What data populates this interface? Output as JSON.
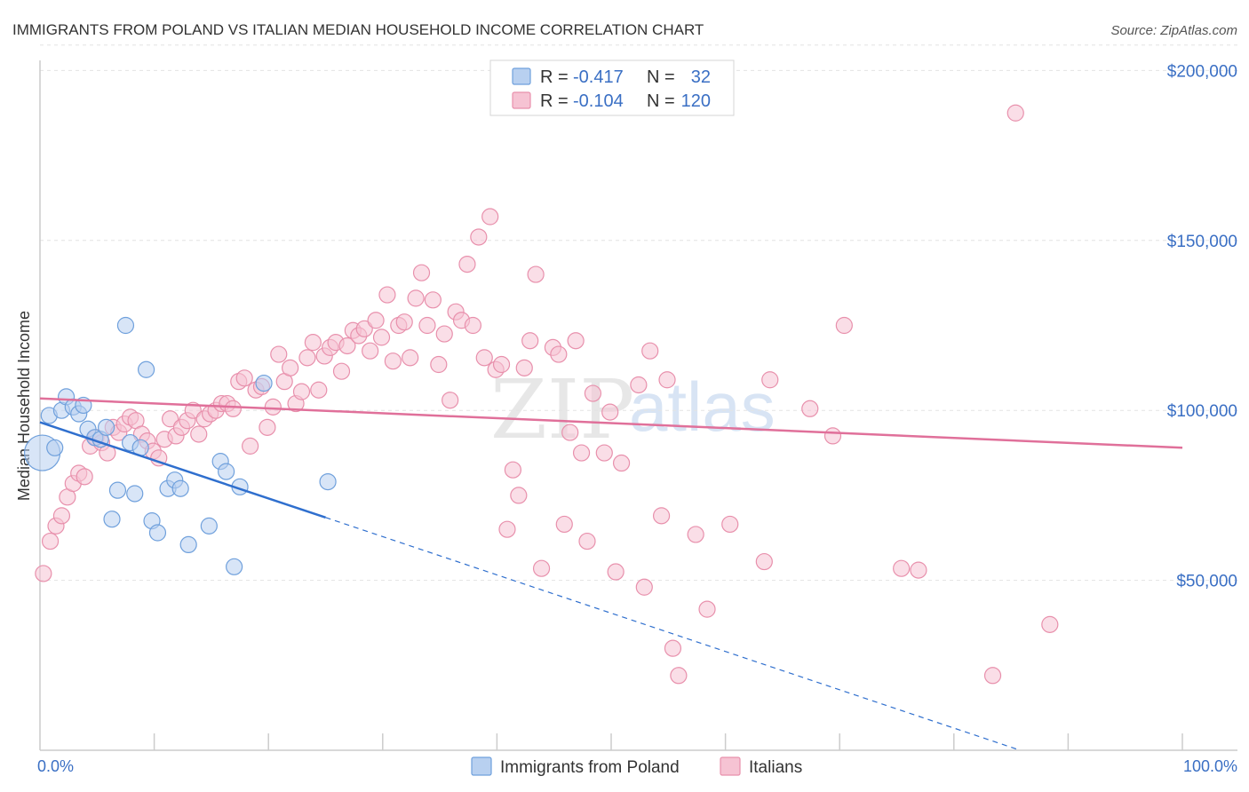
{
  "chart_data": {
    "type": "scatter",
    "title": "IMMIGRANTS FROM POLAND VS ITALIAN MEDIAN HOUSEHOLD INCOME CORRELATION CHART",
    "source": "Source: ZipAtlas.com",
    "xlabel": "",
    "ylabel": "Median Household Income",
    "xlim": [
      0,
      100
    ],
    "ylim": [
      0,
      210000
    ],
    "x_tick_labels": {
      "min": "0.0%",
      "max": "100.0%"
    },
    "y_ticks": [
      {
        "value": 50000,
        "label": "$50,000"
      },
      {
        "value": 100000,
        "label": "$100,000"
      },
      {
        "value": 150000,
        "label": "$150,000"
      },
      {
        "value": 200000,
        "label": "$200,000"
      }
    ],
    "watermark": {
      "part1": "ZIP",
      "part2": "atlas"
    },
    "legend": {
      "r_label": "R =",
      "n_label": "N =",
      "entries": [
        {
          "r": "-0.417",
          "n": "32"
        },
        {
          "r": "-0.104",
          "n": "120"
        }
      ]
    },
    "series": [
      {
        "name": "Immigrants from Poland",
        "color": "#6fa0dc",
        "fill": "#b8d0f0",
        "line_color": "#2f6fce",
        "trend": {
          "x_start": 0,
          "y_start": 96500,
          "x_solid_end": 25,
          "y_solid_end": 68500,
          "x_dash_end": 100,
          "y_dash_end": -16000
        },
        "points": [
          [
            0.2,
            87500,
            20
          ],
          [
            0.8,
            98500,
            9
          ],
          [
            1.3,
            89000,
            9
          ],
          [
            1.9,
            100000,
            9
          ],
          [
            2.3,
            104000,
            9
          ],
          [
            2.9,
            101000,
            9
          ],
          [
            3.4,
            99000,
            9
          ],
          [
            3.8,
            101500,
            9
          ],
          [
            4.2,
            94500,
            9
          ],
          [
            4.8,
            92000,
            9
          ],
          [
            5.3,
            91500,
            9
          ],
          [
            5.8,
            95000,
            9
          ],
          [
            6.3,
            68000,
            9
          ],
          [
            6.8,
            76500,
            9
          ],
          [
            7.5,
            125000,
            9
          ],
          [
            7.9,
            90500,
            9
          ],
          [
            8.3,
            75500,
            9
          ],
          [
            8.8,
            89000,
            9
          ],
          [
            9.3,
            112000,
            9
          ],
          [
            9.8,
            67500,
            9
          ],
          [
            10.3,
            64000,
            9
          ],
          [
            11.2,
            77000,
            9
          ],
          [
            11.8,
            79500,
            9
          ],
          [
            12.3,
            77000,
            9
          ],
          [
            13.0,
            60500,
            9
          ],
          [
            14.8,
            66000,
            9
          ],
          [
            15.8,
            85000,
            9
          ],
          [
            16.3,
            82000,
            9
          ],
          [
            17.0,
            54000,
            9
          ],
          [
            17.5,
            77500,
            9
          ],
          [
            19.6,
            108000,
            9
          ],
          [
            25.2,
            79000,
            9
          ]
        ]
      },
      {
        "name": "Italians",
        "color": "#e890ac",
        "fill": "#f6c3d3",
        "line_color": "#e0709a",
        "trend": {
          "x_start": 0,
          "y_start": 103500,
          "x_end": 100,
          "y_end": 89000
        },
        "points": [
          [
            0.3,
            52000,
            9
          ],
          [
            0.9,
            61500,
            9
          ],
          [
            1.4,
            66000,
            9
          ],
          [
            1.9,
            69000,
            9
          ],
          [
            2.4,
            74500,
            9
          ],
          [
            2.9,
            78500,
            9
          ],
          [
            3.4,
            81500,
            9
          ],
          [
            3.9,
            80500,
            9
          ],
          [
            4.4,
            89500,
            9
          ],
          [
            4.9,
            92000,
            9
          ],
          [
            5.4,
            90500,
            9
          ],
          [
            5.9,
            87500,
            9
          ],
          [
            6.4,
            95000,
            9
          ],
          [
            6.9,
            93500,
            9
          ],
          [
            7.4,
            96000,
            9
          ],
          [
            7.9,
            98000,
            9
          ],
          [
            8.4,
            97000,
            9
          ],
          [
            8.9,
            93000,
            9
          ],
          [
            9.4,
            91000,
            9
          ],
          [
            9.9,
            88000,
            9
          ],
          [
            10.4,
            86000,
            9
          ],
          [
            10.9,
            91500,
            9
          ],
          [
            11.4,
            97500,
            9
          ],
          [
            11.9,
            92500,
            9
          ],
          [
            12.4,
            95000,
            9
          ],
          [
            12.9,
            97000,
            9
          ],
          [
            13.4,
            100000,
            9
          ],
          [
            13.9,
            93000,
            9
          ],
          [
            14.4,
            97500,
            9
          ],
          [
            14.9,
            99000,
            9
          ],
          [
            15.4,
            100000,
            9
          ],
          [
            15.9,
            102000,
            9
          ],
          [
            16.4,
            102000,
            9
          ],
          [
            16.9,
            100500,
            9
          ],
          [
            17.4,
            108500,
            9
          ],
          [
            17.9,
            109500,
            9
          ],
          [
            18.4,
            89500,
            9
          ],
          [
            18.9,
            106000,
            9
          ],
          [
            19.4,
            107000,
            9
          ],
          [
            19.9,
            95000,
            9
          ],
          [
            20.4,
            101000,
            9
          ],
          [
            20.9,
            116500,
            9
          ],
          [
            21.4,
            108500,
            9
          ],
          [
            21.9,
            112500,
            9
          ],
          [
            22.4,
            102000,
            9
          ],
          [
            22.9,
            105500,
            9
          ],
          [
            23.4,
            115500,
            9
          ],
          [
            23.9,
            120000,
            9
          ],
          [
            24.4,
            106000,
            9
          ],
          [
            24.9,
            116000,
            9
          ],
          [
            25.4,
            118500,
            9
          ],
          [
            25.9,
            120000,
            9
          ],
          [
            26.4,
            111500,
            9
          ],
          [
            26.9,
            119000,
            9
          ],
          [
            27.4,
            123500,
            9
          ],
          [
            27.9,
            122000,
            9
          ],
          [
            28.4,
            124000,
            9
          ],
          [
            28.9,
            117500,
            9
          ],
          [
            29.4,
            126500,
            9
          ],
          [
            29.9,
            121500,
            9
          ],
          [
            30.4,
            134000,
            9
          ],
          [
            30.9,
            114500,
            9
          ],
          [
            31.4,
            125000,
            9
          ],
          [
            31.9,
            126000,
            9
          ],
          [
            32.4,
            115500,
            9
          ],
          [
            32.9,
            133000,
            9
          ],
          [
            33.4,
            140500,
            9
          ],
          [
            33.9,
            125000,
            9
          ],
          [
            34.4,
            132500,
            9
          ],
          [
            34.9,
            113500,
            9
          ],
          [
            35.4,
            122500,
            9
          ],
          [
            35.9,
            103000,
            9
          ],
          [
            36.4,
            129000,
            9
          ],
          [
            36.9,
            126500,
            9
          ],
          [
            37.4,
            143000,
            9
          ],
          [
            37.9,
            125000,
            9
          ],
          [
            38.4,
            151000,
            9
          ],
          [
            38.9,
            115500,
            9
          ],
          [
            39.4,
            157000,
            9
          ],
          [
            39.9,
            112000,
            9
          ],
          [
            40.4,
            113500,
            9
          ],
          [
            40.9,
            65000,
            9
          ],
          [
            41.4,
            82500,
            9
          ],
          [
            41.9,
            75000,
            9
          ],
          [
            42.4,
            112500,
            9
          ],
          [
            42.9,
            120500,
            9
          ],
          [
            43.4,
            140000,
            9
          ],
          [
            43.9,
            53500,
            9
          ],
          [
            44.9,
            118500,
            9
          ],
          [
            45.4,
            116500,
            9
          ],
          [
            45.9,
            66500,
            9
          ],
          [
            46.4,
            93500,
            9
          ],
          [
            46.9,
            120500,
            9
          ],
          [
            47.4,
            87500,
            9
          ],
          [
            47.9,
            61500,
            9
          ],
          [
            48.4,
            105000,
            9
          ],
          [
            49.4,
            87500,
            9
          ],
          [
            49.9,
            99500,
            9
          ],
          [
            50.4,
            52500,
            9
          ],
          [
            50.9,
            84500,
            9
          ],
          [
            52.4,
            107500,
            9
          ],
          [
            52.9,
            48000,
            9
          ],
          [
            53.4,
            117500,
            9
          ],
          [
            54.4,
            69000,
            9
          ],
          [
            54.9,
            109000,
            9
          ],
          [
            55.4,
            30000,
            9
          ],
          [
            55.9,
            22000,
            9
          ],
          [
            57.4,
            63500,
            9
          ],
          [
            58.4,
            41500,
            9
          ],
          [
            60.4,
            66500,
            9
          ],
          [
            63.4,
            55500,
            9
          ],
          [
            63.9,
            109000,
            9
          ],
          [
            67.4,
            100500,
            9
          ],
          [
            69.4,
            92500,
            9
          ],
          [
            70.4,
            125000,
            9
          ],
          [
            75.4,
            53500,
            9
          ],
          [
            76.9,
            53000,
            9
          ],
          [
            83.4,
            22000,
            9
          ],
          [
            85.4,
            187500,
            9
          ],
          [
            88.4,
            37000,
            9
          ]
        ]
      }
    ]
  }
}
